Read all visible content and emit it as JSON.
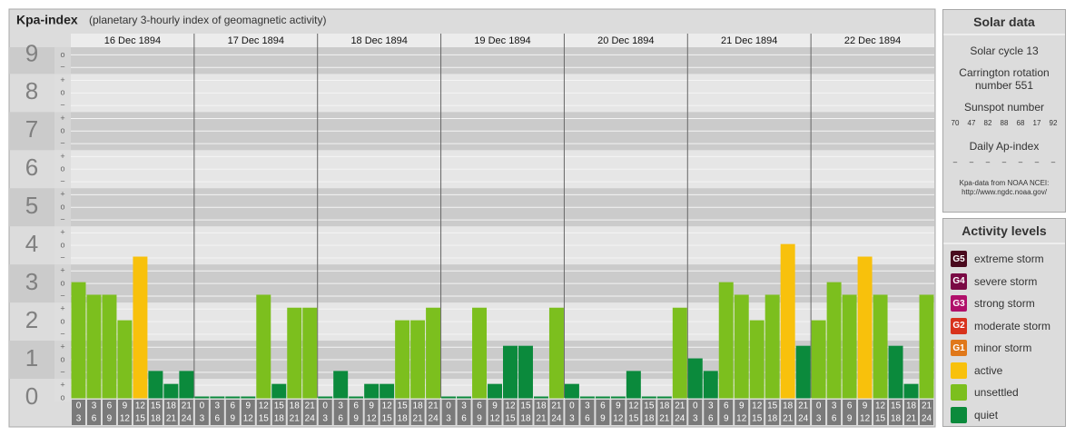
{
  "chart_data": {
    "type": "bar",
    "title": "Kpa-index",
    "subtitle": "(planetary 3-hourly index of geomagnetic activity)",
    "days": [
      "16 Dec 1894",
      "17 Dec 1894",
      "18 Dec 1894",
      "19 Dec 1894",
      "20 Dec 1894",
      "21 Dec 1894",
      "22 Dec 1894"
    ],
    "hours": [
      [
        "0",
        "3"
      ],
      [
        "3",
        "6"
      ],
      [
        "6",
        "9"
      ],
      [
        "9",
        "12"
      ],
      [
        "12",
        "15"
      ],
      [
        "15",
        "18"
      ],
      [
        "18",
        "21"
      ],
      [
        "21",
        "24"
      ]
    ],
    "values": [
      3,
      2.67,
      2.67,
      2,
      3.67,
      0.67,
      0.33,
      0.67,
      0,
      0,
      0,
      0,
      2.67,
      0.33,
      2.33,
      2.33,
      0,
      0.67,
      0,
      0.33,
      0.33,
      2,
      2,
      2.33,
      0,
      0,
      2.33,
      0.33,
      1.33,
      1.33,
      0,
      2.33,
      0.33,
      0,
      0,
      0,
      0.67,
      0,
      0,
      2.33,
      1,
      0.67,
      3,
      2.67,
      2,
      2.67,
      4,
      1.33,
      2,
      3,
      2.67,
      3.67,
      2.67,
      1.33,
      0.33,
      2.67
    ],
    "colors": [
      "#7cbf1e",
      "#7cbf1e",
      "#7cbf1e",
      "#7cbf1e",
      "#f8c10c",
      "#0b8a3c",
      "#0b8a3c",
      "#0b8a3c",
      "#0b8a3c",
      "#0b8a3c",
      "#0b8a3c",
      "#0b8a3c",
      "#7cbf1e",
      "#0b8a3c",
      "#7cbf1e",
      "#7cbf1e",
      "#0b8a3c",
      "#0b8a3c",
      "#0b8a3c",
      "#0b8a3c",
      "#0b8a3c",
      "#7cbf1e",
      "#7cbf1e",
      "#7cbf1e",
      "#0b8a3c",
      "#0b8a3c",
      "#7cbf1e",
      "#0b8a3c",
      "#0b8a3c",
      "#0b8a3c",
      "#0b8a3c",
      "#7cbf1e",
      "#0b8a3c",
      "#0b8a3c",
      "#0b8a3c",
      "#0b8a3c",
      "#0b8a3c",
      "#0b8a3c",
      "#0b8a3c",
      "#7cbf1e",
      "#0b8a3c",
      "#0b8a3c",
      "#7cbf1e",
      "#7cbf1e",
      "#7cbf1e",
      "#7cbf1e",
      "#f8c10c",
      "#0b8a3c",
      "#7cbf1e",
      "#7cbf1e",
      "#7cbf1e",
      "#f8c10c",
      "#7cbf1e",
      "#0b8a3c",
      "#0b8a3c",
      "#7cbf1e"
    ],
    "ylim": [
      0,
      9.2
    ],
    "yticks": [
      0,
      1,
      2,
      3,
      4,
      5,
      6,
      7,
      8,
      9
    ],
    "minor_yticks": [
      {
        "value": 0,
        "label": "o"
      },
      {
        "value": 0.33,
        "label": "+"
      },
      {
        "value": 0.67,
        "label": "−"
      },
      {
        "value": 1,
        "label": "o"
      },
      {
        "value": 1.33,
        "label": "+"
      },
      {
        "value": 1.67,
        "label": "−"
      },
      {
        "value": 2,
        "label": "o"
      },
      {
        "value": 2.33,
        "label": "+"
      },
      {
        "value": 2.67,
        "label": "−"
      },
      {
        "value": 3,
        "label": "o"
      },
      {
        "value": 3.33,
        "label": "+"
      },
      {
        "value": 3.67,
        "label": "−"
      },
      {
        "value": 4,
        "label": "o"
      },
      {
        "value": 4.33,
        "label": "+"
      },
      {
        "value": 4.67,
        "label": "−"
      },
      {
        "value": 5,
        "label": "o"
      },
      {
        "value": 5.33,
        "label": "+"
      },
      {
        "value": 5.67,
        "label": "−"
      },
      {
        "value": 6,
        "label": "o"
      },
      {
        "value": 6.33,
        "label": "+"
      },
      {
        "value": 6.67,
        "label": "−"
      },
      {
        "value": 7,
        "label": "o"
      },
      {
        "value": 7.33,
        "label": "+"
      },
      {
        "value": 7.67,
        "label": "−"
      },
      {
        "value": 8,
        "label": "o"
      },
      {
        "value": 8.33,
        "label": "+"
      },
      {
        "value": 8.67,
        "label": "−"
      },
      {
        "value": 9,
        "label": "o"
      }
    ],
    "grid": true
  },
  "solar_data": {
    "title": "Solar data",
    "cycle": "Solar cycle 13",
    "carrington": "Carrington rotation number 551",
    "sunspot_label": "Sunspot number",
    "sunspot_numbers": [
      70,
      47,
      82,
      88,
      68,
      17,
      92
    ],
    "ap_label": "Daily Ap-index",
    "ap_values": [
      "–",
      "–",
      "–",
      "–",
      "–",
      "–",
      "–"
    ],
    "source": [
      "Kpa-data from NOAA NCEI:",
      "http://www.ngdc.noaa.gov/"
    ]
  },
  "activity_levels": {
    "title": "Activity levels",
    "items": [
      {
        "badge": "G5",
        "label": "extreme storm",
        "color": "#4a0a1e"
      },
      {
        "badge": "G4",
        "label": "severe storm",
        "color": "#7a0a45"
      },
      {
        "badge": "G3",
        "label": "strong storm",
        "color": "#b0106a"
      },
      {
        "badge": "G2",
        "label": "moderate storm",
        "color": "#d8321c"
      },
      {
        "badge": "G1",
        "label": "minor storm",
        "color": "#e0781a"
      },
      {
        "label": "active",
        "color": "#f8c10c"
      },
      {
        "label": "unsettled",
        "color": "#7cbf1e"
      },
      {
        "label": "quiet",
        "color": "#0b8a3c"
      }
    ]
  }
}
